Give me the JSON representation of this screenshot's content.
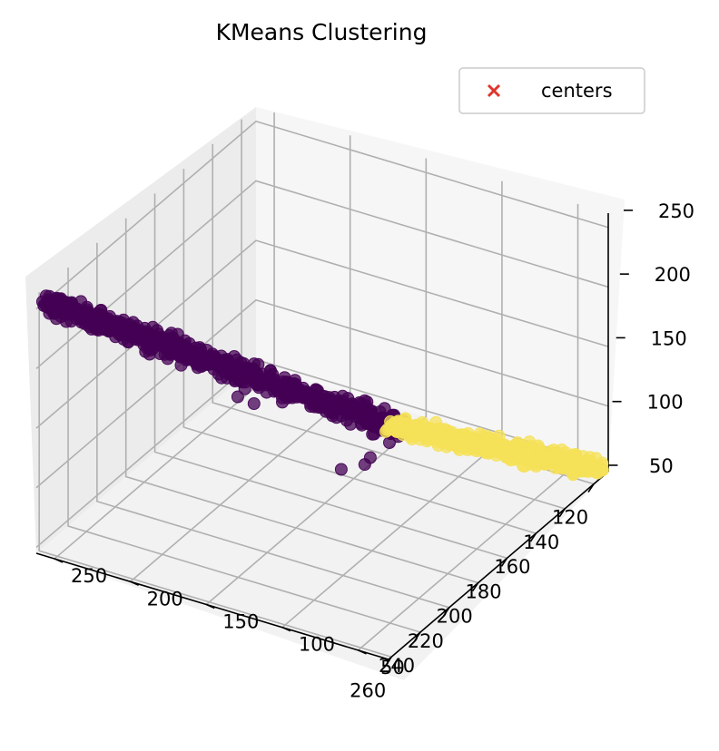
{
  "chart_data": {
    "type": "scatter",
    "projection": "3d",
    "title": "KMeans Clustering",
    "xlabel": "",
    "ylabel": "",
    "zlabel": "",
    "xlim": [
      110,
      262
    ],
    "ylim": [
      30,
      262
    ],
    "zlim": [
      45,
      262
    ],
    "x_ticks": [
      120,
      140,
      160,
      180,
      200,
      220,
      240,
      260
    ],
    "y_ticks": [
      50,
      100,
      150,
      200,
      250
    ],
    "z_ticks": [
      50,
      100,
      150,
      200,
      250
    ],
    "grid": true,
    "legend": {
      "position": "top-right",
      "entries": [
        {
          "label": "centers",
          "marker": "x",
          "color": "#e0352b"
        }
      ]
    },
    "series": [
      {
        "cluster": 0,
        "color": "#440154",
        "trend": {
          "x": [
            165,
            262
          ],
          "y": [
            115,
            255
          ],
          "z": [
            105,
            258
          ]
        },
        "point_count": 700
      },
      {
        "cluster": 1,
        "color": "#f5e158",
        "trend": {
          "x": [
            112,
            168
          ],
          "y": [
            35,
            118
          ],
          "z": [
            48,
            110
          ]
        },
        "point_count": 600
      }
    ],
    "centers": []
  }
}
